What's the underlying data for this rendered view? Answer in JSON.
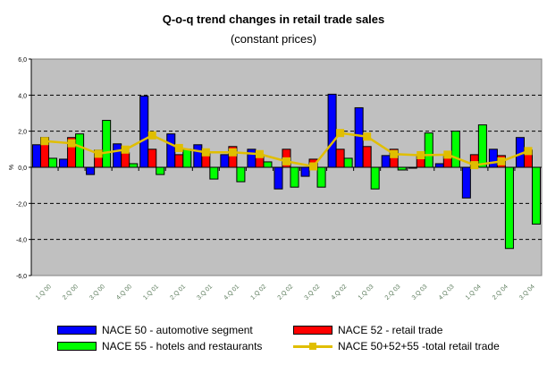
{
  "chart_data": {
    "type": "bar",
    "title": "Q-o-q  trend changes in retail trade sales",
    "subtitle": "(constant prices)",
    "xlabel": "",
    "ylabel": "%",
    "ylim": [
      -6,
      6
    ],
    "yticks": [
      "6,0",
      "4,0",
      "2,0",
      "0,0",
      "-2,0",
      "-4,0",
      "-6,0"
    ],
    "ytick_values": [
      6,
      4,
      2,
      0,
      -2,
      -4,
      -6
    ],
    "grid": true,
    "categories": [
      "1.Q 00",
      "2.Q 00",
      "3.Q 00",
      "4.Q 00",
      "1.Q 01",
      "2.Q 01",
      "3.Q 01",
      "4.Q 01",
      "1.Q 02",
      "2.Q 02",
      "3.Q 02",
      "4.Q 02",
      "1.Q 03",
      "2.Q 03",
      "3.Q 03",
      "4.Q 03",
      "1.Q 04",
      "2.Q 04",
      "3.Q 04"
    ],
    "series": [
      {
        "name": "NACE 50 - automotive segment",
        "type": "bar",
        "color": "#0000ff",
        "values": [
          1.25,
          0.45,
          -0.4,
          1.3,
          3.95,
          1.85,
          1.25,
          0.7,
          1.0,
          -1.2,
          -0.5,
          4.05,
          3.3,
          0.65,
          -0.05,
          0.2,
          -1.7,
          1.0,
          1.65
        ]
      },
      {
        "name": "NACE 52 - retail trade",
        "type": "bar",
        "color": "#ff0000",
        "values": [
          1.65,
          1.65,
          0.95,
          0.8,
          1.0,
          0.7,
          0.85,
          1.15,
          0.65,
          1.0,
          0.45,
          1.0,
          1.15,
          1.0,
          0.6,
          0.6,
          0.7,
          0.65,
          0.95
        ]
      },
      {
        "name": "NACE 55 - hotels and restaurants",
        "type": "bar",
        "color": "#00ff00",
        "values": [
          0.5,
          1.85,
          2.6,
          0.2,
          -0.4,
          1.0,
          -0.65,
          -0.8,
          0.3,
          -1.1,
          -1.1,
          0.5,
          -1.2,
          -0.15,
          1.9,
          2.0,
          2.35,
          -4.5,
          -3.15
        ]
      },
      {
        "name": "NACE 50+52+55 -total retail trade",
        "type": "line",
        "color": "#e0be00",
        "values": [
          1.45,
          1.33,
          0.75,
          0.98,
          1.77,
          1.07,
          0.83,
          0.83,
          0.73,
          0.33,
          0.05,
          1.9,
          1.7,
          0.73,
          0.67,
          0.7,
          0.12,
          0.33,
          0.9
        ]
      }
    ],
    "legend_position": "bottom"
  }
}
